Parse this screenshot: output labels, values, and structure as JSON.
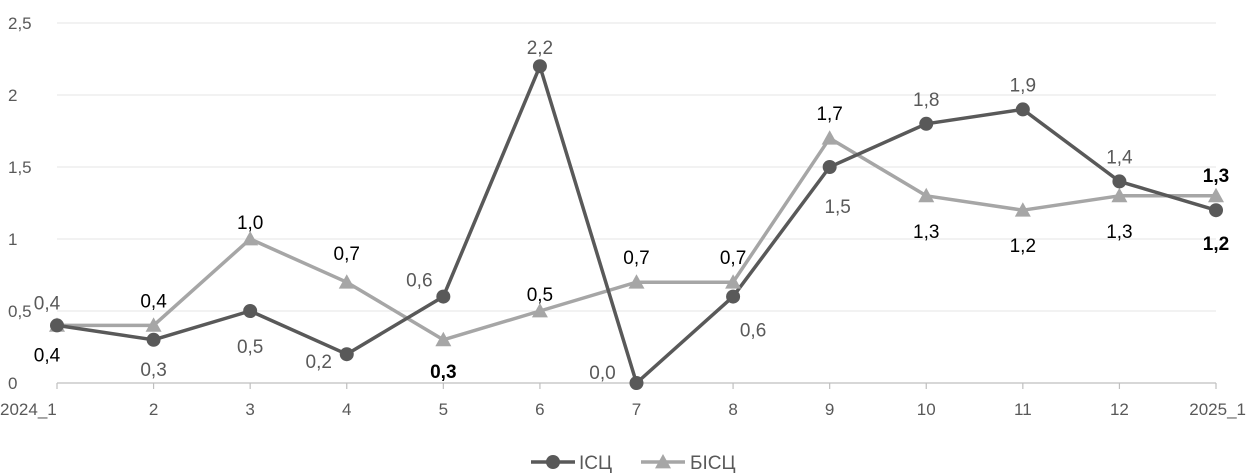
{
  "chart_data": {
    "type": "line",
    "title": "",
    "xlabel": "",
    "ylabel": "",
    "categories": [
      "2024_1",
      "2",
      "3",
      "4",
      "5",
      "6",
      "7",
      "8",
      "9",
      "10",
      "11",
      "12",
      "2025_1"
    ],
    "ylim": [
      0,
      2.5
    ],
    "yticks": [
      0,
      0.5,
      1,
      1.5,
      2,
      2.5
    ],
    "ytick_labels": [
      "0",
      "0,5",
      "1",
      "1,5",
      "2",
      "2,5"
    ],
    "grid": true,
    "legend_position": "bottom",
    "series": [
      {
        "name": "ІСЦ",
        "marker": "circle",
        "color": "#595959",
        "values": [
          0.4,
          0.3,
          0.5,
          0.2,
          0.6,
          2.2,
          0.0,
          0.6,
          1.5,
          1.8,
          1.9,
          1.4,
          1.2
        ],
        "labels": [
          "0,4",
          "0,3",
          "0,5",
          "0,2",
          "0,6",
          "2,2",
          "0,0",
          "0,6",
          "1,5",
          "1,8",
          "1,9",
          "1,4",
          "1,2"
        ]
      },
      {
        "name": "БІСЦ",
        "marker": "triangle",
        "color": "#a6a6a6",
        "values": [
          0.4,
          0.4,
          1.0,
          0.7,
          0.3,
          0.5,
          0.7,
          0.7,
          1.7,
          1.3,
          1.2,
          1.3,
          1.3
        ],
        "labels": [
          "0,4",
          "0,4",
          "1,0",
          "0,7",
          "0,3",
          "0,5",
          "0,7",
          "0,7",
          "1,7",
          "1,3",
          "1,2",
          "1,3",
          "1,3"
        ]
      }
    ]
  },
  "colors": {
    "label_gray": "#595959",
    "label_black": "#000000",
    "grid": "#e6e6e6",
    "axis": "#bfbfbf"
  }
}
